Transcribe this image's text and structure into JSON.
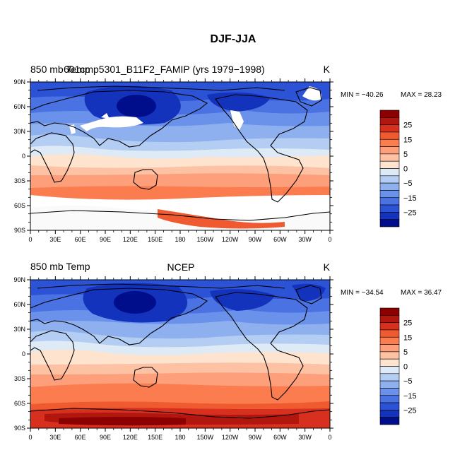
{
  "figure": {
    "title": "DJF-JJA"
  },
  "chart_data": [
    {
      "type": "heatmap",
      "subtitle_left": "850 mb Temp",
      "subtitle_center": "601cmp5301_B11F2_FAMIP (yrs 1979−1998)",
      "units": "K",
      "min_label": "MIN = −40.26",
      "max_label": "MAX =  28.23",
      "min": -40.26,
      "max": 28.23,
      "x_ticks": [
        "0",
        "30E",
        "60E",
        "90E",
        "120E",
        "150E",
        "180",
        "150W",
        "120W",
        "90W",
        "60W",
        "30W",
        "0"
      ],
      "y_ticks": [
        "90N",
        "60N",
        "30N",
        "0",
        "30S",
        "60S",
        "90S"
      ],
      "xlim": [
        0,
        360
      ],
      "ylim": [
        -90,
        90
      ],
      "colorbar_labels": [
        "25",
        "15",
        "5",
        "0",
        "−5",
        "−15",
        "−25"
      ]
    },
    {
      "type": "heatmap",
      "subtitle_left": "850 mb Temp",
      "subtitle_center": "NCEP",
      "units": "K",
      "min_label": "MIN = −34.54",
      "max_label": "MAX =  36.47",
      "min": -34.54,
      "max": 36.47,
      "x_ticks": [
        "0",
        "30E",
        "60E",
        "90E",
        "120E",
        "150E",
        "180",
        "150W",
        "120W",
        "90W",
        "60W",
        "30W",
        "0"
      ],
      "y_ticks": [
        "90N",
        "60N",
        "30N",
        "0",
        "30S",
        "60S",
        "90S"
      ],
      "xlim": [
        0,
        360
      ],
      "ylim": [
        -90,
        90
      ],
      "colorbar_labels": [
        "25",
        "15",
        "5",
        "0",
        "−5",
        "−15",
        "−25"
      ]
    }
  ],
  "colorbar": {
    "colors": [
      "#8b0000",
      "#b2170f",
      "#d7301f",
      "#ef5a31",
      "#fb7d4f",
      "#fc9f7a",
      "#fdc1a4",
      "#fee3cf",
      "#deebf7",
      "#b4cdf3",
      "#8fb0ef",
      "#6b92ea",
      "#4a72e2",
      "#2c52d6",
      "#1433bd",
      "#000e8c"
    ]
  }
}
